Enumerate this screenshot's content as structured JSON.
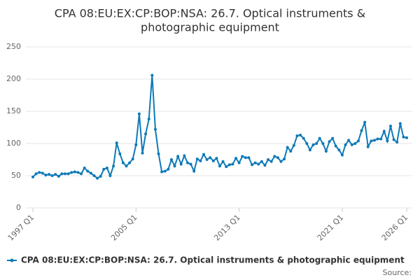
{
  "chart_data": {
    "type": "line",
    "title_lines": [
      "CPA 08:EU:EX:CP:BOP:NSA: 26.7. Optical instruments &",
      "photographic equipment"
    ],
    "categories": [
      "1997 Q1",
      null,
      null,
      null,
      null,
      null,
      null,
      null,
      null,
      null,
      null,
      null,
      null,
      null,
      null,
      null,
      null,
      null,
      null,
      null,
      null,
      null,
      null,
      null,
      null,
      null,
      null,
      null,
      null,
      null,
      null,
      null,
      "2005 Q1",
      null,
      null,
      null,
      null,
      null,
      null,
      null,
      null,
      null,
      null,
      null,
      null,
      null,
      null,
      null,
      null,
      null,
      null,
      null,
      null,
      null,
      null,
      null,
      null,
      null,
      null,
      null,
      null,
      null,
      null,
      null,
      "2013 Q1",
      null,
      null,
      null,
      null,
      null,
      null,
      null,
      null,
      null,
      null,
      null,
      null,
      null,
      null,
      null,
      null,
      null,
      null,
      null,
      null,
      null,
      null,
      null,
      null,
      null,
      null,
      null,
      null,
      null,
      null,
      null,
      "2021 Q1",
      null,
      null,
      null,
      null,
      null,
      null,
      null,
      null,
      null,
      null,
      null,
      null,
      null,
      null,
      null,
      null,
      null,
      null,
      null,
      "2026 Q1"
    ],
    "series": [
      {
        "name": "CPA 08:EU:EX:CP:BOP:NSA: 26.7. Optical instruments & photographic equipment",
        "color": "#0e7ab8",
        "values": [
          48,
          53,
          55,
          54,
          51,
          52,
          50,
          52,
          49,
          53,
          53,
          53,
          55,
          56,
          55,
          53,
          62,
          57,
          54,
          50,
          46,
          49,
          60,
          62,
          50,
          65,
          101,
          84,
          70,
          65,
          70,
          76,
          98,
          146,
          85,
          115,
          138,
          206,
          122,
          84,
          56,
          57,
          60,
          75,
          65,
          80,
          68,
          81,
          70,
          68,
          57,
          76,
          73,
          83,
          75,
          78,
          73,
          77,
          65,
          72,
          64,
          67,
          68,
          77,
          70,
          80,
          78,
          78,
          67,
          70,
          68,
          72,
          66,
          75,
          72,
          80,
          78,
          72,
          76,
          94,
          88,
          97,
          112,
          113,
          108,
          100,
          90,
          98,
          100,
          108,
          100,
          88,
          103,
          108,
          96,
          90,
          82,
          98,
          105,
          98,
          100,
          104,
          120,
          133,
          95,
          104,
          105,
          107,
          107,
          119,
          104,
          127,
          106,
          102,
          131,
          110,
          109
        ]
      }
    ],
    "ylim": [
      0,
      250
    ],
    "yticks": [
      0,
      50,
      100,
      150,
      200,
      250
    ],
    "grid": true,
    "source": "Source:"
  }
}
